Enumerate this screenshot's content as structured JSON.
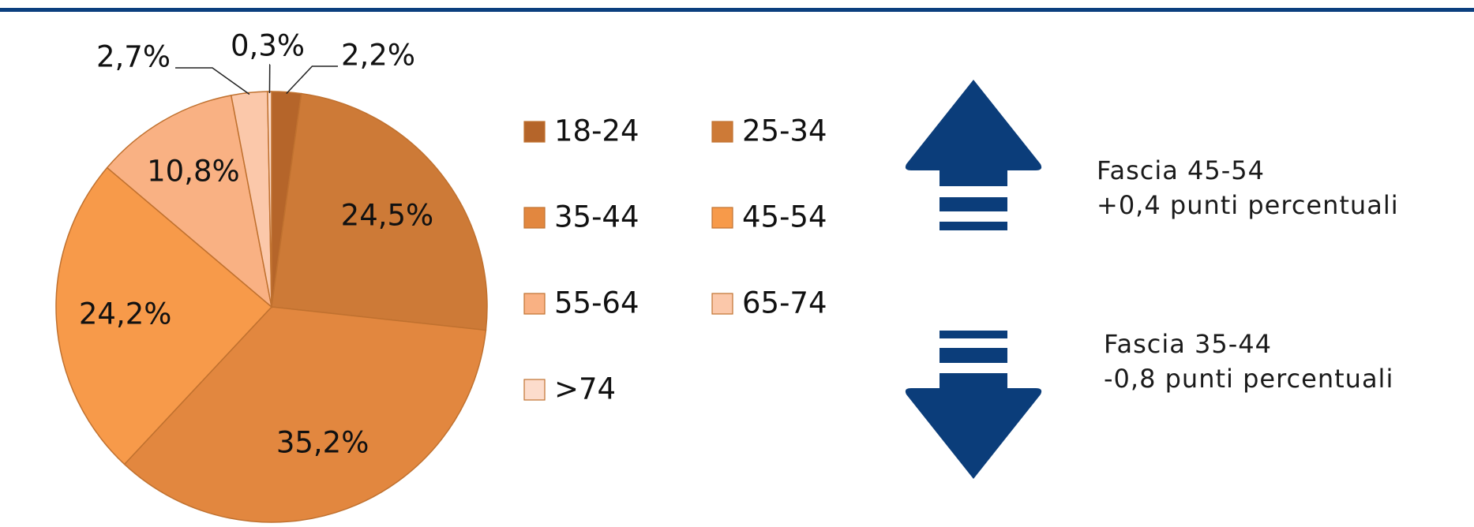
{
  "chart_data": {
    "type": "pie",
    "categories": [
      "18-24",
      "25-34",
      "35-44",
      "45-54",
      "55-64",
      "65-74",
      ">74"
    ],
    "values": [
      2.2,
      24.5,
      35.2,
      24.2,
      10.8,
      2.7,
      0.3
    ],
    "value_labels": [
      "2,2%",
      "24,5%",
      "35,2%",
      "24,2%",
      "10,8%",
      "2,7%",
      "0,3%"
    ],
    "colors": [
      "#b5652a",
      "#cd7a37",
      "#e2873f",
      "#f79a4a",
      "#f9b183",
      "#fbc8aa",
      "#fcdccc"
    ],
    "annotations": [
      {
        "title": "Fascia 45-54",
        "text": "+0,4 punti percentuali"
      },
      {
        "title": "Fascia 35-44",
        "text": "-0,8 punti percentuali"
      }
    ]
  }
}
